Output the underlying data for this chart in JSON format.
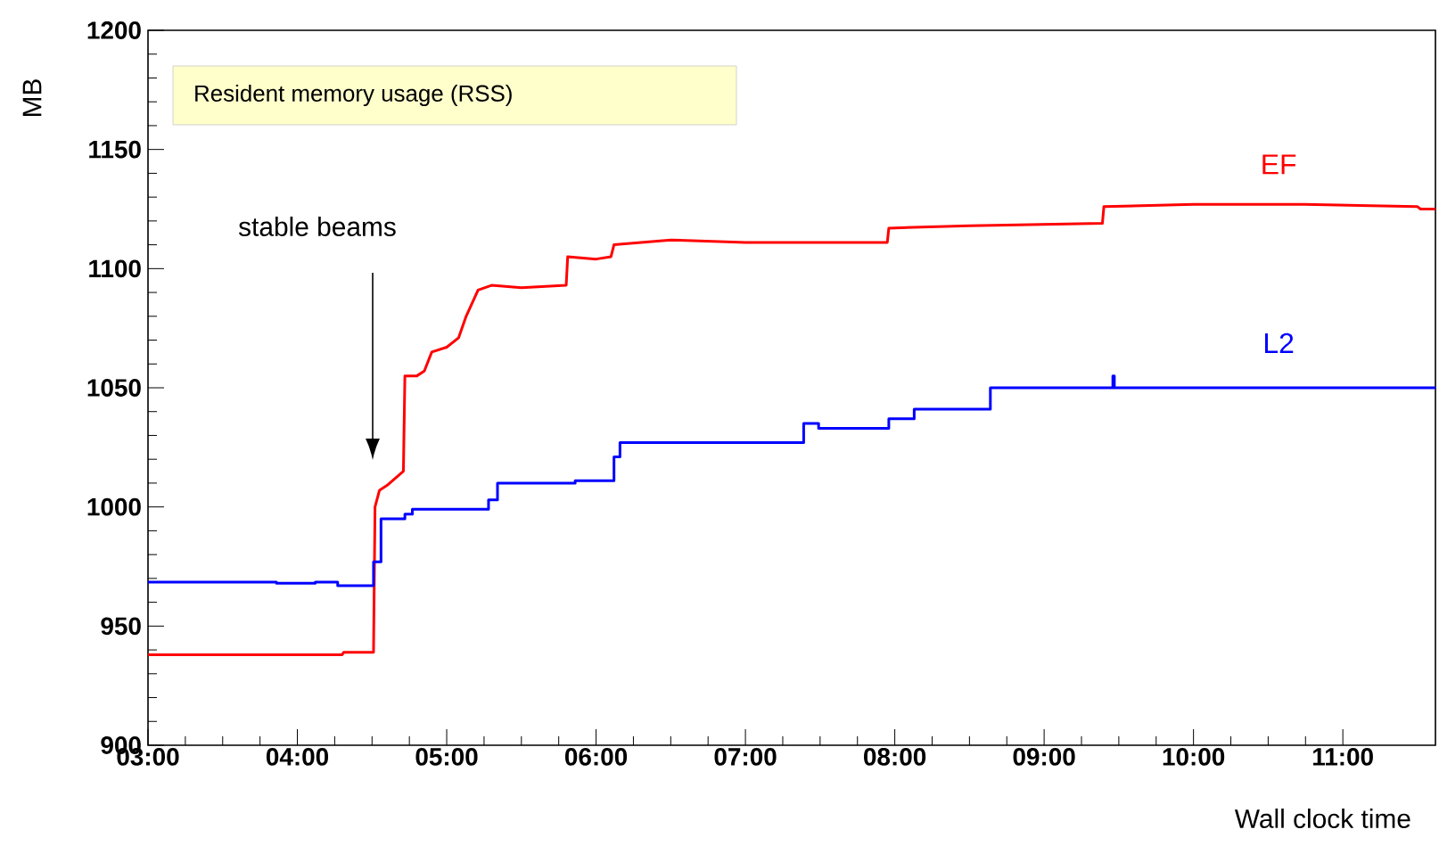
{
  "chart_data": {
    "type": "step",
    "title": "Resident memory usage (RSS)",
    "xlabel": "Wall clock time",
    "ylabel": "MB",
    "annotations": [
      "stable beams"
    ],
    "xlim": [
      3,
      11.62
    ],
    "ylim": [
      900,
      1200
    ],
    "xticks": [
      {
        "value": 3,
        "label": "03:00"
      },
      {
        "value": 4,
        "label": "04:00"
      },
      {
        "value": 5,
        "label": "05:00"
      },
      {
        "value": 6,
        "label": "06:00"
      },
      {
        "value": 7,
        "label": "07:00"
      },
      {
        "value": 8,
        "label": "08:00"
      },
      {
        "value": 9,
        "label": "09:00"
      },
      {
        "value": 10,
        "label": "10:00"
      },
      {
        "value": 11,
        "label": "11:00"
      }
    ],
    "yticks": [
      900,
      950,
      1000,
      1050,
      1100,
      1150,
      1200
    ],
    "grid": false,
    "legend": false,
    "series": [
      {
        "name": "EF",
        "color": "#ff0000",
        "type": "line",
        "x": [
          3.0,
          4.3,
          4.31,
          4.51,
          4.52,
          4.55,
          4.6,
          4.71,
          4.72,
          4.8,
          4.85,
          4.9,
          5.0,
          5.08,
          5.13,
          5.21,
          5.3,
          5.5,
          5.8,
          5.81,
          6.0,
          6.1,
          6.12,
          6.5,
          7.0,
          7.5,
          7.95,
          7.96,
          8.5,
          9.39,
          9.4,
          10.0,
          10.74,
          11.5,
          11.52,
          11.62
        ],
        "values": [
          938,
          938,
          939,
          939,
          1000,
          1007,
          1009,
          1015,
          1055,
          1055,
          1057,
          1065,
          1067,
          1071,
          1080,
          1091,
          1093,
          1092,
          1093,
          1105,
          1104,
          1105,
          1110,
          1112,
          1111,
          1111,
          1111,
          1117,
          1118,
          1119,
          1126,
          1127,
          1127,
          1126,
          1125,
          1125
        ]
      },
      {
        "name": "L2",
        "color": "#0000ff",
        "x": [
          3.0,
          3.86,
          4.12,
          4.27,
          4.51,
          4.56,
          4.72,
          4.77,
          5.28,
          5.34,
          5.86,
          6.12,
          6.16,
          7.39,
          7.49,
          7.96,
          8.13,
          8.64,
          9.46,
          9.47,
          11.62
        ],
        "values": [
          968.5,
          968,
          968.5,
          967,
          977,
          995,
          997,
          999,
          1003,
          1010,
          1011,
          1021,
          1027,
          1035,
          1033,
          1037,
          1041,
          1050,
          1055,
          1050,
          1050
        ]
      }
    ]
  }
}
